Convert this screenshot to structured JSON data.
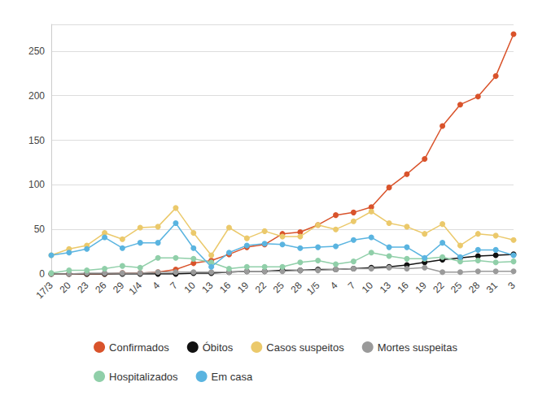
{
  "chart_data": {
    "type": "line",
    "categories": [
      "17/3",
      "20",
      "23",
      "26",
      "29",
      "1/4",
      "4",
      "7",
      "10",
      "13",
      "16",
      "19",
      "22",
      "25",
      "28",
      "1/5",
      "4",
      "7",
      "10",
      "13",
      "16",
      "19",
      "22",
      "25",
      "28",
      "31",
      "3"
    ],
    "series": [
      {
        "name": "Confirmados",
        "color": "#d9532b",
        "values": [
          0,
          0,
          0,
          0,
          1,
          1,
          2,
          5,
          12,
          15,
          22,
          30,
          33,
          45,
          47,
          55,
          66,
          69,
          75,
          97,
          112,
          129,
          166,
          190,
          199,
          222,
          269
        ]
      },
      {
        "name": "Óbitos",
        "color": "#111111",
        "values": [
          0,
          0,
          0,
          0,
          0,
          0,
          0,
          0,
          1,
          1,
          2,
          3,
          3,
          4,
          4,
          5,
          5,
          6,
          7,
          8,
          10,
          13,
          16,
          18,
          20,
          21,
          22
        ]
      },
      {
        "name": "Casos suspeitos",
        "color": "#ebc96b",
        "values": [
          21,
          28,
          32,
          46,
          39,
          52,
          53,
          74,
          46,
          21,
          52,
          40,
          48,
          42,
          42,
          55,
          50,
          59,
          70,
          57,
          53,
          45,
          56,
          32,
          45,
          43,
          38
        ]
      },
      {
        "name": "Mortes suspeitas",
        "color": "#9a9a9a",
        "values": [
          0,
          0,
          1,
          1,
          1,
          1,
          2,
          2,
          2,
          2,
          2,
          3,
          3,
          3,
          4,
          4,
          5,
          6,
          6,
          7,
          6,
          7,
          2,
          2,
          3,
          3,
          3
        ]
      },
      {
        "name": "Hospitalizados",
        "color": "#90cfa9",
        "values": [
          1,
          4,
          4,
          6,
          9,
          7,
          18,
          18,
          17,
          13,
          6,
          8,
          8,
          8,
          13,
          15,
          11,
          14,
          24,
          20,
          17,
          17,
          19,
          14,
          15,
          13,
          14
        ]
      },
      {
        "name": "Em casa",
        "color": "#5ab4e0",
        "values": [
          21,
          24,
          28,
          41,
          29,
          35,
          35,
          57,
          29,
          8,
          24,
          32,
          34,
          33,
          29,
          30,
          31,
          38,
          41,
          30,
          30,
          18,
          35,
          19,
          27,
          27,
          21
        ]
      }
    ],
    "ylim": [
      0,
      280
    ],
    "yticks": [
      0,
      50,
      100,
      150,
      200,
      250
    ],
    "grid": true,
    "legend": "bottom",
    "marker": "circle"
  }
}
